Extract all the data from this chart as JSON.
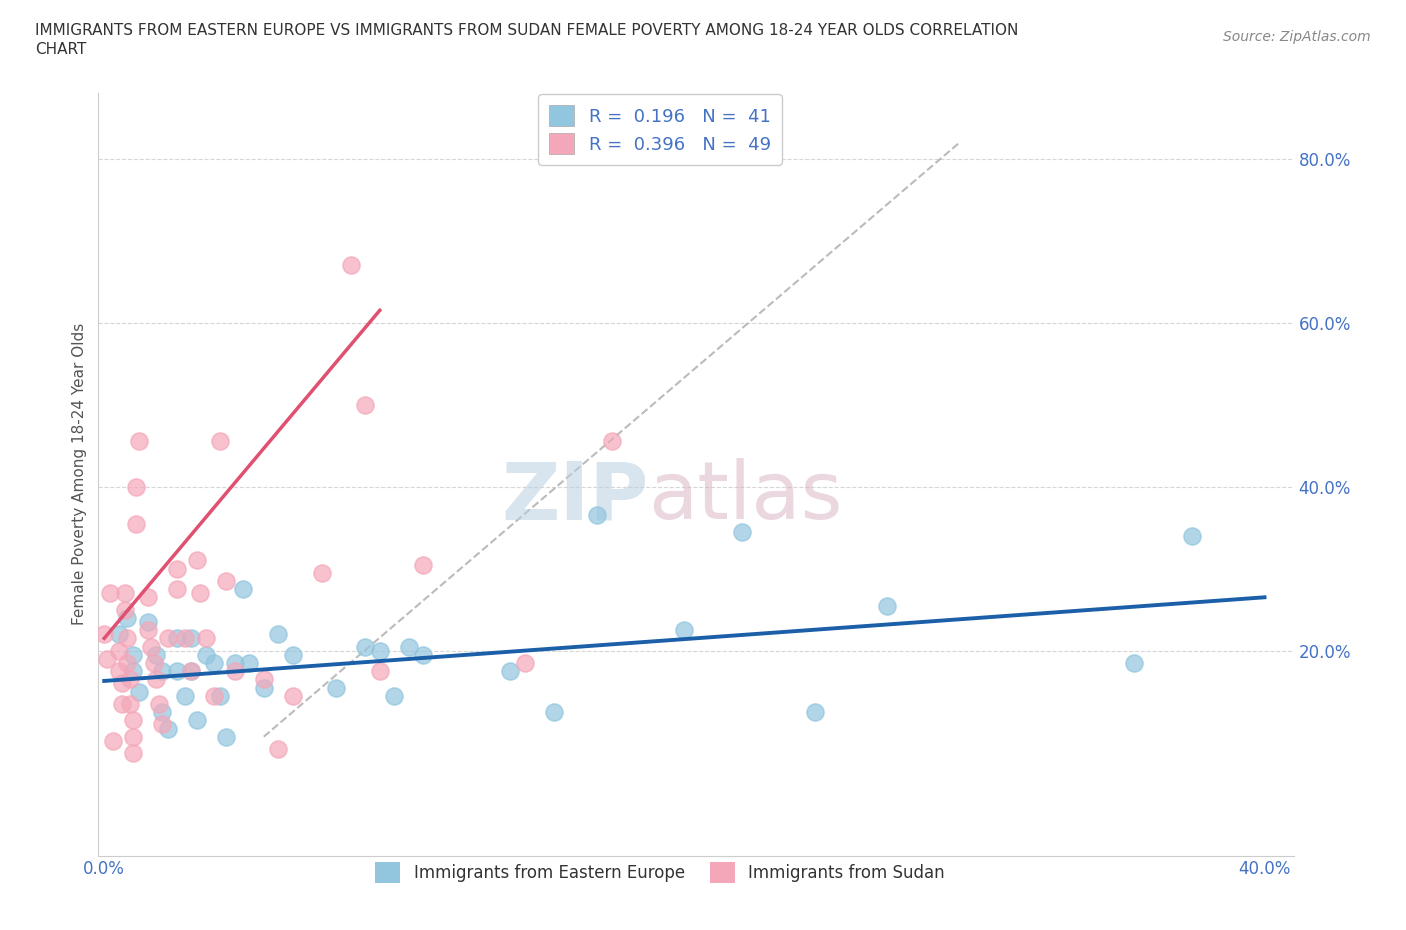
{
  "title_line1": "IMMIGRANTS FROM EASTERN EUROPE VS IMMIGRANTS FROM SUDAN FEMALE POVERTY AMONG 18-24 YEAR OLDS CORRELATION",
  "title_line2": "CHART",
  "source_text": "Source: ZipAtlas.com",
  "ylabel": "Female Poverty Among 18-24 Year Olds",
  "xlim": [
    -0.002,
    0.41
  ],
  "ylim": [
    -0.05,
    0.88
  ],
  "blue_color": "#92c5de",
  "pink_color": "#f4a7b9",
  "blue_line_color": "#1a5fa8",
  "pink_line_color": "#e05070",
  "grid_color": "#cccccc",
  "watermark_zip": "ZIP",
  "watermark_atlas": "atlas",
  "R_blue": 0.196,
  "N_blue": 41,
  "R_pink": 0.396,
  "N_pink": 49,
  "blue_scatter_x": [
    0.005,
    0.008,
    0.01,
    0.01,
    0.012,
    0.015,
    0.018,
    0.02,
    0.02,
    0.022,
    0.025,
    0.025,
    0.028,
    0.03,
    0.03,
    0.032,
    0.035,
    0.038,
    0.04,
    0.042,
    0.045,
    0.048,
    0.05,
    0.055,
    0.06,
    0.065,
    0.08,
    0.09,
    0.095,
    0.1,
    0.105,
    0.11,
    0.14,
    0.155,
    0.17,
    0.2,
    0.22,
    0.245,
    0.27,
    0.355,
    0.375
  ],
  "blue_scatter_y": [
    0.22,
    0.24,
    0.195,
    0.175,
    0.15,
    0.235,
    0.195,
    0.175,
    0.125,
    0.105,
    0.215,
    0.175,
    0.145,
    0.215,
    0.175,
    0.115,
    0.195,
    0.185,
    0.145,
    0.095,
    0.185,
    0.275,
    0.185,
    0.155,
    0.22,
    0.195,
    0.155,
    0.205,
    0.2,
    0.145,
    0.205,
    0.195,
    0.175,
    0.125,
    0.365,
    0.225,
    0.345,
    0.125,
    0.255,
    0.185,
    0.34
  ],
  "pink_scatter_x": [
    0.0,
    0.001,
    0.002,
    0.003,
    0.005,
    0.005,
    0.006,
    0.006,
    0.007,
    0.007,
    0.008,
    0.008,
    0.009,
    0.009,
    0.01,
    0.01,
    0.01,
    0.011,
    0.011,
    0.012,
    0.015,
    0.015,
    0.016,
    0.017,
    0.018,
    0.019,
    0.02,
    0.022,
    0.025,
    0.025,
    0.028,
    0.03,
    0.032,
    0.033,
    0.035,
    0.038,
    0.04,
    0.042,
    0.045,
    0.055,
    0.06,
    0.065,
    0.075,
    0.085,
    0.09,
    0.095,
    0.11,
    0.145,
    0.175
  ],
  "pink_scatter_y": [
    0.22,
    0.19,
    0.27,
    0.09,
    0.2,
    0.175,
    0.16,
    0.135,
    0.27,
    0.25,
    0.215,
    0.185,
    0.165,
    0.135,
    0.115,
    0.095,
    0.075,
    0.355,
    0.4,
    0.455,
    0.265,
    0.225,
    0.205,
    0.185,
    0.165,
    0.135,
    0.11,
    0.215,
    0.3,
    0.275,
    0.215,
    0.175,
    0.31,
    0.27,
    0.215,
    0.145,
    0.455,
    0.285,
    0.175,
    0.165,
    0.08,
    0.145,
    0.295,
    0.67,
    0.5,
    0.175,
    0.305,
    0.185,
    0.455
  ],
  "blue_trend_x": [
    0.0,
    0.4
  ],
  "blue_trend_y": [
    0.163,
    0.265
  ],
  "pink_trend_x": [
    0.0,
    0.095
  ],
  "pink_trend_y": [
    0.215,
    0.615
  ],
  "diag_line_x": [
    0.055,
    0.295
  ],
  "diag_line_y": [
    0.095,
    0.82
  ]
}
